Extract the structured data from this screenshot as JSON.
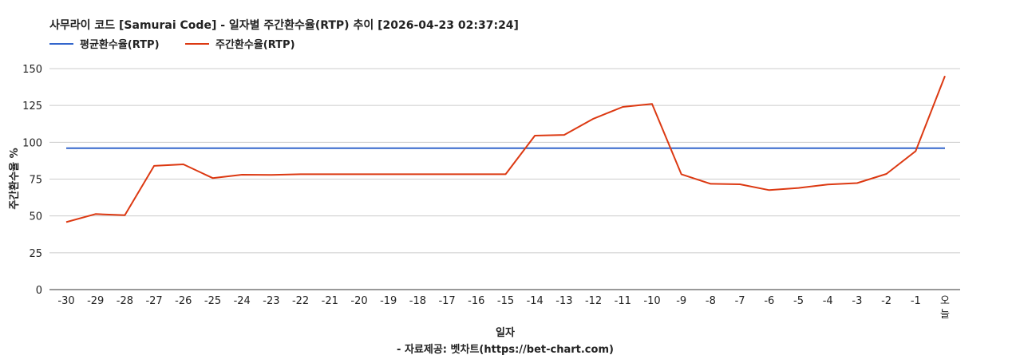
{
  "chart_data": {
    "type": "line",
    "title": "사무라이 코드 [Samurai Code] - 일자별 주간환수율(RTP) 추이 [2026-04-23 02:37:24]",
    "xlabel": "일자",
    "ylabel": "주간환수율 %",
    "source": "- 자료제공: 벳차트(https://bet-chart.com)",
    "legend_position": "top-left",
    "grid": true,
    "ylim": [
      0,
      150
    ],
    "yticks": [
      "0",
      "25",
      "50",
      "75",
      "100",
      "125",
      "150"
    ],
    "categories": [
      "-30",
      "-29",
      "-28",
      "-27",
      "-26",
      "-25",
      "-24",
      "-23",
      "-22",
      "-21",
      "-20",
      "-19",
      "-18",
      "-17",
      "-16",
      "-15",
      "-14",
      "-13",
      "-12",
      "-11",
      "-10",
      "-9",
      "-8",
      "-7",
      "-6",
      "-5",
      "-4",
      "-3",
      "-2",
      "-1",
      "오늘"
    ],
    "series": [
      {
        "name": "평균환수율(RTP)",
        "color": "#3366cc",
        "values": [
          96,
          96,
          96,
          96,
          96,
          96,
          96,
          96,
          96,
          96,
          96,
          96,
          96,
          96,
          96,
          96,
          96,
          96,
          96,
          96,
          96,
          96,
          96,
          96,
          96,
          96,
          96,
          96,
          96,
          96,
          96
        ]
      },
      {
        "name": "주간환수율(RTP)",
        "color": "#dc3912",
        "values": [
          45.8,
          51.3,
          50.5,
          84,
          85,
          75.7,
          78,
          77.8,
          78.3,
          78.3,
          78.3,
          78.3,
          78.3,
          78.3,
          78.3,
          78.3,
          104.5,
          105,
          116,
          124,
          126,
          78.3,
          71.8,
          71.5,
          67.5,
          69,
          71.3,
          72.3,
          78.5,
          94,
          145
        ]
      }
    ]
  }
}
